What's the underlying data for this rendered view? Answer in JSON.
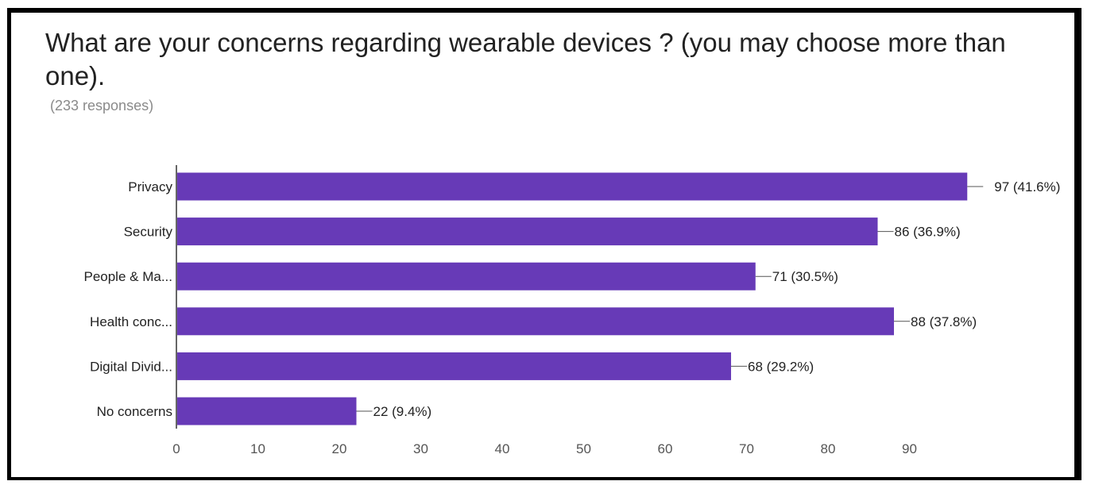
{
  "chart_data": {
    "type": "bar",
    "orientation": "horizontal",
    "title": "What are your concerns regarding wearable devices ? (you may choose more than one).",
    "subtitle": "(233 responses)",
    "categories": [
      "Privacy",
      "Security",
      "People & Ma...",
      "Health conc...",
      "Digital Divid...",
      "No concerns"
    ],
    "values": [
      97,
      86,
      71,
      88,
      68,
      22
    ],
    "value_labels": [
      "97 (41.6%)",
      "86 (36.9%)",
      "71 (30.5%)",
      "88 (37.8%)",
      "68 (29.2%)",
      "22 (9.4%)"
    ],
    "xticks": [
      "0",
      "10",
      "20",
      "30",
      "40",
      "50",
      "60",
      "70",
      "80",
      "90"
    ],
    "xlim": [
      0,
      97
    ],
    "grid": false,
    "bar_color": "#673ab7"
  }
}
